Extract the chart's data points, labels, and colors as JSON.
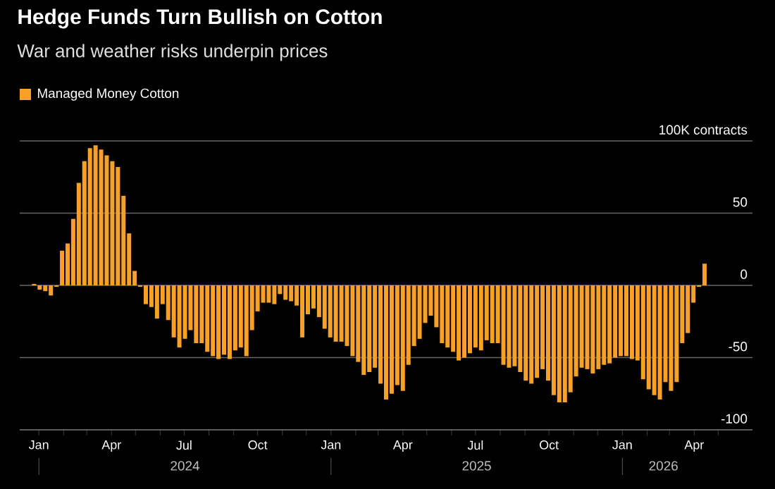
{
  "chart_data": {
    "type": "bar",
    "title": "Hedge Funds Turn Bullish on Cotton",
    "subtitle": "War and weather risks underpin prices",
    "legend": "top left",
    "x": [
      "2023-12-26",
      "2024-01-02",
      "2024-01-09",
      "2024-01-16",
      "2024-01-23",
      "2024-01-30",
      "2024-02-06",
      "2024-02-13",
      "2024-02-20",
      "2024-02-27",
      "2024-03-05",
      "2024-03-12",
      "2024-03-19",
      "2024-03-26",
      "2024-04-02",
      "2024-04-09",
      "2024-04-16",
      "2024-04-23",
      "2024-04-30",
      "2024-05-07",
      "2024-05-14",
      "2024-05-21",
      "2024-05-28",
      "2024-06-04",
      "2024-06-11",
      "2024-06-18",
      "2024-06-25",
      "2024-07-02",
      "2024-07-09",
      "2024-07-16",
      "2024-07-23",
      "2024-07-30",
      "2024-08-06",
      "2024-08-13",
      "2024-08-20",
      "2024-08-27",
      "2024-09-03",
      "2024-09-10",
      "2024-09-17",
      "2024-09-24",
      "2024-10-01",
      "2024-10-08",
      "2024-10-15",
      "2024-10-22",
      "2024-10-29",
      "2024-11-05",
      "2024-11-12",
      "2024-11-19",
      "2024-11-26",
      "2024-12-03",
      "2024-12-10",
      "2024-12-17",
      "2024-12-24",
      "2024-12-31",
      "2025-01-07",
      "2025-01-14",
      "2025-01-21",
      "2025-01-28",
      "2025-02-04",
      "2025-02-11",
      "2025-02-18",
      "2025-02-25",
      "2025-03-04",
      "2025-03-11",
      "2025-03-18",
      "2025-03-25",
      "2025-04-01",
      "2025-04-08",
      "2025-04-15",
      "2025-04-22",
      "2025-04-29",
      "2025-05-06",
      "2025-05-13",
      "2025-05-20",
      "2025-05-27",
      "2025-06-03",
      "2025-06-10",
      "2025-06-17",
      "2025-06-24",
      "2025-07-01",
      "2025-07-08",
      "2025-07-15",
      "2025-07-22",
      "2025-07-29",
      "2025-08-05",
      "2025-08-12",
      "2025-08-19",
      "2025-08-26",
      "2025-09-02",
      "2025-09-09",
      "2025-09-16",
      "2025-09-23",
      "2025-09-30",
      "2025-10-07",
      "2025-10-14",
      "2025-10-21",
      "2025-10-28",
      "2025-11-04",
      "2025-11-11",
      "2025-11-18",
      "2025-11-25",
      "2025-12-02",
      "2025-12-09",
      "2025-12-16",
      "2025-12-23",
      "2025-12-30",
      "2026-01-06",
      "2026-01-13",
      "2026-01-20",
      "2026-01-27",
      "2026-02-03",
      "2026-02-10",
      "2026-02-17",
      "2026-02-24",
      "2026-03-03",
      "2026-03-10",
      "2026-03-17",
      "2026-03-24",
      "2026-03-31",
      "2026-04-07",
      "2026-04-14"
    ],
    "series": [
      {
        "name": "Managed Money Cotton",
        "color": "#f7a128",
        "values": [
          1,
          -3,
          -4,
          -7,
          -1,
          24,
          29,
          46,
          71,
          86,
          95,
          97,
          94,
          90,
          86,
          82,
          62,
          36,
          10,
          -1,
          -13,
          -15,
          -23,
          -13,
          -24,
          -36,
          -43,
          -37,
          -31,
          -40,
          -40,
          -46,
          -49,
          -51,
          -48,
          -51,
          -45,
          -43,
          -49,
          -31,
          -18,
          -12,
          -12,
          -13,
          -6,
          -10,
          -11,
          -14,
          -36,
          -20,
          -16,
          -22,
          -30,
          -36,
          -39,
          -39,
          -42,
          -49,
          -53,
          -62,
          -60,
          -57,
          -68,
          -79,
          -75,
          -69,
          -73,
          -55,
          -42,
          -37,
          -26,
          -21,
          -29,
          -40,
          -43,
          -46,
          -52,
          -50,
          -47,
          -43,
          -45,
          -38,
          -40,
          -40,
          -55,
          -57,
          -56,
          -60,
          -66,
          -68,
          -64,
          -58,
          -66,
          -76,
          -81,
          -81,
          -74,
          -63,
          -57,
          -58,
          -61,
          -58,
          -55,
          -54,
          -50,
          -49,
          -49,
          -51,
          -52,
          -65,
          -72,
          -76,
          -79,
          -67,
          -73,
          -67,
          -40,
          -33,
          -12,
          -1,
          15
        ]
      }
    ],
    "xlim": [
      "2023-12-08",
      "2026-06-13"
    ],
    "xticks": [
      {
        "value": "2024-01-01",
        "label": "Jan"
      },
      {
        "value": "2024-02-01",
        "label": null
      },
      {
        "value": "2024-03-01",
        "label": null
      },
      {
        "value": "2024-04-01",
        "label": "Apr"
      },
      {
        "value": "2024-05-01",
        "label": null
      },
      {
        "value": "2024-06-01",
        "label": null
      },
      {
        "value": "2024-07-01",
        "label": "Jul"
      },
      {
        "value": "2024-08-01",
        "label": null
      },
      {
        "value": "2024-09-01",
        "label": null
      },
      {
        "value": "2024-10-01",
        "label": "Oct"
      },
      {
        "value": "2024-11-01",
        "label": null
      },
      {
        "value": "2024-12-01",
        "label": null
      },
      {
        "value": "2025-01-01",
        "label": "Jan"
      },
      {
        "value": "2025-02-01",
        "label": null
      },
      {
        "value": "2025-03-01",
        "label": null
      },
      {
        "value": "2025-04-01",
        "label": "Apr"
      },
      {
        "value": "2025-05-01",
        "label": null
      },
      {
        "value": "2025-06-01",
        "label": null
      },
      {
        "value": "2025-07-01",
        "label": "Jul"
      },
      {
        "value": "2025-08-01",
        "label": null
      },
      {
        "value": "2025-09-01",
        "label": null
      },
      {
        "value": "2025-10-01",
        "label": "Oct"
      },
      {
        "value": "2025-11-01",
        "label": null
      },
      {
        "value": "2025-12-01",
        "label": null
      },
      {
        "value": "2026-01-01",
        "label": "Jan"
      },
      {
        "value": "2026-02-01",
        "label": null
      },
      {
        "value": "2026-03-01",
        "label": null
      },
      {
        "value": "2026-04-01",
        "label": "Apr"
      },
      {
        "value": "2026-05-01",
        "label": null
      }
    ],
    "ylim": [
      -100,
      100
    ],
    "yticks": [
      -100,
      -50,
      0,
      50,
      {
        "value": 100,
        "label": "100K contracts"
      }
    ],
    "grid": "y",
    "annotations": [
      "2024",
      "2025",
      "2026"
    ]
  }
}
